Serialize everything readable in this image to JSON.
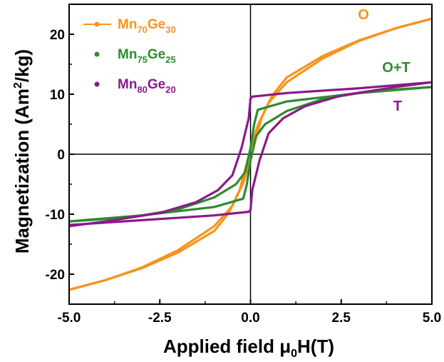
{
  "chart_data": {
    "type": "line",
    "title": "",
    "xlabel": {
      "prefix": "Applied field ",
      "mu": "μ",
      "sub": "0",
      "suffix": "H(T)"
    },
    "ylabel": {
      "prefix": "Magnetization (Am",
      "sup": "2",
      "suffix": "/kg)"
    },
    "xlim": [
      -5,
      5
    ],
    "ylim": [
      -25,
      25
    ],
    "xticks": [
      "-5.0",
      "-2.5",
      "0.0",
      "2.5",
      "5.0"
    ],
    "yticks": [
      "-20",
      "-10",
      "0",
      "10",
      "20"
    ],
    "legend_position": "top-left",
    "series": [
      {
        "name": "Mn70Ge30",
        "label": {
          "base1": "Mn",
          "sub1": "70",
          "base2": "Ge",
          "sub2": "30"
        },
        "color": "#F7931E",
        "annotation": "O",
        "upper": [
          [
            -5,
            -22.6
          ],
          [
            -4,
            -21.0
          ],
          [
            -3,
            -18.9
          ],
          [
            -2,
            -16.0
          ],
          [
            -1,
            -12.0
          ],
          [
            -0.5,
            -8.6
          ],
          [
            -0.2,
            -4.8
          ],
          [
            0,
            -1.0
          ],
          [
            0.1,
            1.5
          ],
          [
            0.3,
            6.0
          ],
          [
            0.6,
            9.8
          ],
          [
            1,
            12.8
          ],
          [
            2,
            16.4
          ],
          [
            3,
            19.0
          ],
          [
            4,
            21.0
          ],
          [
            5,
            22.6
          ]
        ],
        "lower": [
          [
            -5,
            -22.6
          ],
          [
            -4,
            -21.0
          ],
          [
            -3,
            -19.0
          ],
          [
            -2,
            -16.4
          ],
          [
            -1,
            -12.8
          ],
          [
            -0.6,
            -9.8
          ],
          [
            -0.3,
            -6.0
          ],
          [
            -0.1,
            -1.5
          ],
          [
            0,
            1.0
          ],
          [
            0.2,
            4.8
          ],
          [
            0.5,
            8.6
          ],
          [
            1,
            12.0
          ],
          [
            2,
            16.0
          ],
          [
            3,
            18.9
          ],
          [
            4,
            21.0
          ],
          [
            5,
            22.6
          ]
        ]
      },
      {
        "name": "Mn75Ge25",
        "label": {
          "base1": "Mn",
          "sub1": "75",
          "base2": "Ge",
          "sub2": "25"
        },
        "color": "#2E8B2E",
        "annotation": "O+T",
        "upper": [
          [
            -5,
            -11.2
          ],
          [
            -3,
            -10.2
          ],
          [
            -1,
            -8.8
          ],
          [
            -0.2,
            -7.4
          ],
          [
            -0.1,
            -5.0
          ],
          [
            0.0,
            -1.0
          ],
          [
            0.15,
            3.0
          ],
          [
            0.4,
            5.0
          ],
          [
            1,
            7.2
          ],
          [
            2,
            9.2
          ],
          [
            3,
            10.2
          ],
          [
            4,
            10.8
          ],
          [
            5,
            11.2
          ]
        ],
        "lower": [
          [
            5,
            11.2
          ],
          [
            3,
            10.2
          ],
          [
            1,
            8.8
          ],
          [
            0.2,
            7.4
          ],
          [
            0.1,
            5.0
          ],
          [
            0.0,
            1.0
          ],
          [
            -0.15,
            -3.0
          ],
          [
            -0.4,
            -5.0
          ],
          [
            -1,
            -7.2
          ],
          [
            -2,
            -9.2
          ],
          [
            -3,
            -10.2
          ],
          [
            -4,
            -10.8
          ],
          [
            -5,
            -11.2
          ]
        ]
      },
      {
        "name": "Mn80Ge20",
        "label": {
          "base1": "Mn",
          "sub1": "80",
          "base2": "Ge",
          "sub2": "20"
        },
        "color": "#8B1A8B",
        "annotation": "T",
        "upper": [
          [
            -5,
            -11.8
          ],
          [
            -3,
            -11.0
          ],
          [
            -1,
            -10.2
          ],
          [
            -0.05,
            -9.6
          ],
          [
            0.0,
            -9.3
          ],
          [
            0.05,
            -6.0
          ],
          [
            0.25,
            -1.0
          ],
          [
            0.5,
            3.5
          ],
          [
            0.9,
            6.0
          ],
          [
            1.5,
            8.0
          ],
          [
            2.5,
            9.8
          ],
          [
            4,
            11.2
          ],
          [
            5,
            12.0
          ]
        ],
        "lower": [
          [
            5,
            12.0
          ],
          [
            3,
            11.0
          ],
          [
            1,
            10.2
          ],
          [
            0.05,
            9.6
          ],
          [
            0.0,
            9.3
          ],
          [
            -0.05,
            6.0
          ],
          [
            -0.25,
            1.0
          ],
          [
            -0.5,
            -3.5
          ],
          [
            -0.9,
            -6.0
          ],
          [
            -1.5,
            -8.0
          ],
          [
            -2.5,
            -9.8
          ],
          [
            -4,
            -11.2
          ],
          [
            -5,
            -12.0
          ]
        ]
      }
    ]
  }
}
